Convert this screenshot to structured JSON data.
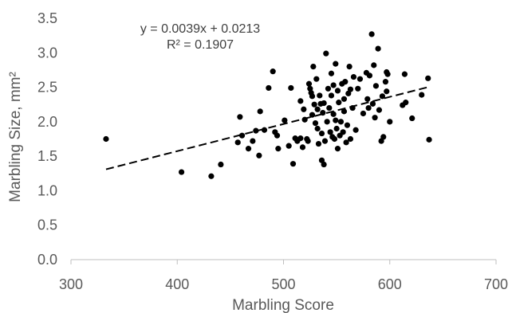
{
  "chart_data": {
    "type": "scatter",
    "title": "",
    "xlabel": "Marbling Score",
    "ylabel": "Marbling Size, mm²",
    "xlim": [
      300,
      700
    ],
    "ylim": [
      0.0,
      3.5
    ],
    "x_ticks": [
      "300",
      "400",
      "500",
      "600",
      "700"
    ],
    "y_ticks": [
      "0.0",
      "0.5",
      "1.0",
      "1.5",
      "2.0",
      "2.5",
      "3.0",
      "3.5"
    ],
    "grid": false,
    "legend": "none",
    "point_color": "#000000",
    "trendline": {
      "style": "dashed",
      "color": "#000000",
      "equation": "y = 0.0039x + 0.0213",
      "r_squared": "R² = 0.1907",
      "from": {
        "x": 333,
        "y": 1.31
      },
      "to": {
        "x": 638,
        "y": 2.51
      }
    },
    "points": [
      [
        333,
        1.75
      ],
      [
        404,
        1.27
      ],
      [
        432,
        1.21
      ],
      [
        441,
        1.38
      ],
      [
        457,
        1.7
      ],
      [
        459,
        2.07
      ],
      [
        461,
        1.8
      ],
      [
        467,
        1.61
      ],
      [
        471,
        1.72
      ],
      [
        474,
        1.87
      ],
      [
        477,
        1.51
      ],
      [
        478,
        2.15
      ],
      [
        482,
        1.88
      ],
      [
        486,
        2.49
      ],
      [
        490,
        2.73
      ],
      [
        492,
        1.85
      ],
      [
        494,
        1.8
      ],
      [
        495,
        1.61
      ],
      [
        501,
        2.02
      ],
      [
        505,
        1.65
      ],
      [
        507,
        2.49
      ],
      [
        509,
        1.39
      ],
      [
        511,
        1.76
      ],
      [
        513,
        1.72
      ],
      [
        516,
        1.76
      ],
      [
        516,
        2.3
      ],
      [
        518,
        1.63
      ],
      [
        519,
        2.18
      ],
      [
        520,
        2.03
      ],
      [
        522,
        1.75
      ],
      [
        523,
        1.72
      ],
      [
        524,
        2.55
      ],
      [
        525,
        2.48
      ],
      [
        526,
        2.42
      ],
      [
        527,
        2.37
      ],
      [
        527,
        2.1
      ],
      [
        528,
        2.8
      ],
      [
        529,
        2.25
      ],
      [
        530,
        1.98
      ],
      [
        531,
        2.62
      ],
      [
        532,
        2.18
      ],
      [
        532,
        1.9
      ],
      [
        533,
        1.68
      ],
      [
        534,
        2.38
      ],
      [
        535,
        2.26
      ],
      [
        536,
        1.44
      ],
      [
        536,
        1.83
      ],
      [
        537,
        2.13
      ],
      [
        538,
        1.38
      ],
      [
        538,
        2.27
      ],
      [
        539,
        1.72
      ],
      [
        540,
        2.99
      ],
      [
        541,
        2.0
      ],
      [
        542,
        2.48
      ],
      [
        543,
        2.2
      ],
      [
        544,
        1.85
      ],
      [
        545,
        2.7
      ],
      [
        545,
        2.38
      ],
      [
        546,
        1.78
      ],
      [
        547,
        2.53
      ],
      [
        547,
        2.11
      ],
      [
        548,
        1.75
      ],
      [
        549,
        2.84
      ],
      [
        549,
        2.02
      ],
      [
        550,
        1.9
      ],
      [
        551,
        2.45
      ],
      [
        551,
        1.61
      ],
      [
        552,
        2.28
      ],
      [
        553,
        1.8
      ],
      [
        554,
        2.0
      ],
      [
        555,
        2.55
      ],
      [
        556,
        1.85
      ],
      [
        557,
        2.33
      ],
      [
        557,
        2.15
      ],
      [
        558,
        2.58
      ],
      [
        559,
        1.7
      ],
      [
        560,
        1.95
      ],
      [
        561,
        2.41
      ],
      [
        562,
        2.8
      ],
      [
        563,
        1.75
      ],
      [
        563,
        2.47
      ],
      [
        565,
        2.2
      ],
      [
        566,
        2.65
      ],
      [
        568,
        1.88
      ],
      [
        570,
        2.48
      ],
      [
        572,
        2.62
      ],
      [
        575,
        2.12
      ],
      [
        578,
        2.71
      ],
      [
        579,
        2.33
      ],
      [
        580,
        2.2
      ],
      [
        581,
        2.67
      ],
      [
        583,
        3.27
      ],
      [
        584,
        2.26
      ],
      [
        585,
        2.82
      ],
      [
        586,
        2.06
      ],
      [
        587,
        2.52
      ],
      [
        589,
        3.06
      ],
      [
        590,
        2.17
      ],
      [
        592,
        1.72
      ],
      [
        593,
        2.37
      ],
      [
        594,
        1.78
      ],
      [
        596,
        2.58
      ],
      [
        597,
        2.72
      ],
      [
        597,
        2.44
      ],
      [
        598,
        2.69
      ],
      [
        600,
        2.0
      ],
      [
        612,
        2.24
      ],
      [
        614,
        2.69
      ],
      [
        615,
        2.28
      ],
      [
        621,
        2.05
      ],
      [
        630,
        2.39
      ],
      [
        636,
        2.63
      ],
      [
        637,
        1.74
      ]
    ]
  }
}
